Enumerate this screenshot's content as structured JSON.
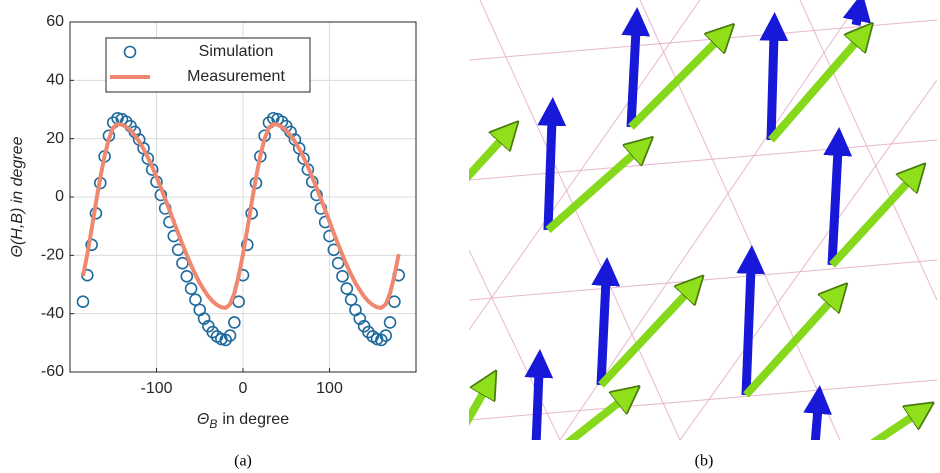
{
  "chart_data": {
    "type": "line",
    "xlabel": "Θ",
    "xlabel_subscript": "B",
    "xlabel_suffix": "in degree",
    "ylabel": "Θ(H,B) in degree",
    "xlim": [
      -200,
      200
    ],
    "xticks": [
      -100,
      0,
      100
    ],
    "ylim": [
      -60,
      60
    ],
    "yticks": [
      -60,
      -40,
      -20,
      0,
      20,
      40,
      60
    ],
    "grid": true,
    "legend": "upper left",
    "x": [
      -185,
      -180,
      -175,
      -170,
      -165,
      -160,
      -155,
      -150,
      -145,
      -140,
      -135,
      -130,
      -125,
      -120,
      -115,
      -110,
      -105,
      -100,
      -95,
      -90,
      -85,
      -80,
      -75,
      -70,
      -65,
      -60,
      -55,
      -50,
      -45,
      -40,
      -35,
      -30,
      -25,
      -20,
      -15,
      -10,
      -5,
      0,
      5,
      10,
      15,
      20,
      25,
      30,
      35,
      40,
      45,
      50,
      55,
      60,
      65,
      70,
      75,
      80,
      85,
      90,
      95,
      100,
      105,
      110,
      115,
      120,
      125,
      130,
      135,
      140,
      145,
      150,
      155,
      160,
      165,
      170,
      175,
      180
    ],
    "series": [
      {
        "name": "Simulation",
        "type": "scatter",
        "color": "#1f6a9c",
        "values": [
          -35.9,
          -26.8,
          -16.4,
          -5.6,
          4.8,
          13.9,
          21.0,
          25.5,
          27,
          26.7,
          25.8,
          24.3,
          22.3,
          19.7,
          16.7,
          13.2,
          9.4,
          5.2,
          0.7,
          -3.9,
          -8.6,
          -13.4,
          -18.1,
          -22.7,
          -27.2,
          -31.4,
          -35.2,
          -38.7,
          -41.7,
          -44.3,
          -46.3,
          -47.8,
          -48.7,
          -49,
          -47.5,
          -43.0,
          -35.9,
          -26.8,
          -16.4,
          -5.6,
          4.8,
          13.9,
          21.0,
          25.5,
          27,
          26.7,
          25.8,
          24.3,
          22.3,
          19.7,
          16.7,
          13.2,
          9.4,
          5.2,
          0.7,
          -3.9,
          -8.6,
          -13.4,
          -18.1,
          -22.7,
          -27.2,
          -31.4,
          -35.2,
          -38.7,
          -41.7,
          -44.3,
          -46.3,
          -47.8,
          -48.7,
          -49,
          -47.5,
          -43.0,
          -35.9,
          -26.8
        ]
      },
      {
        "name": "Measurement",
        "type": "line",
        "color": "#f0876f",
        "values": [
          -27.1,
          -19.6,
          -11.0,
          -2.0,
          6.6,
          14.1,
          20.0,
          23.8,
          25,
          24.8,
          24.0,
          22.8,
          21.1,
          19.0,
          16.5,
          13.6,
          10.4,
          6.9,
          3.2,
          -0.6,
          -4.5,
          -8.5,
          -12.4,
          -16.2,
          -19.9,
          -23.4,
          -26.6,
          -29.5,
          -31.9,
          -34.1,
          -35.8,
          -37.0,
          -37.8,
          -38,
          -36.8,
          -33.0,
          -27.1,
          -19.6,
          -11.0,
          -2.0,
          6.6,
          14.1,
          20.0,
          23.8,
          25,
          24.8,
          24.0,
          22.8,
          21.1,
          19.0,
          16.5,
          13.6,
          10.4,
          6.9,
          3.2,
          -0.6,
          -4.5,
          -8.5,
          -12.4,
          -16.2,
          -19.9,
          -23.4,
          -26.6,
          -29.5,
          -31.9,
          -34.1,
          -35.8,
          -37.0,
          -37.8,
          -38,
          -36.8,
          -33.0,
          -27.1,
          -19.6
        ]
      }
    ]
  },
  "captions": {
    "a": "(a)",
    "b": "(b)"
  }
}
